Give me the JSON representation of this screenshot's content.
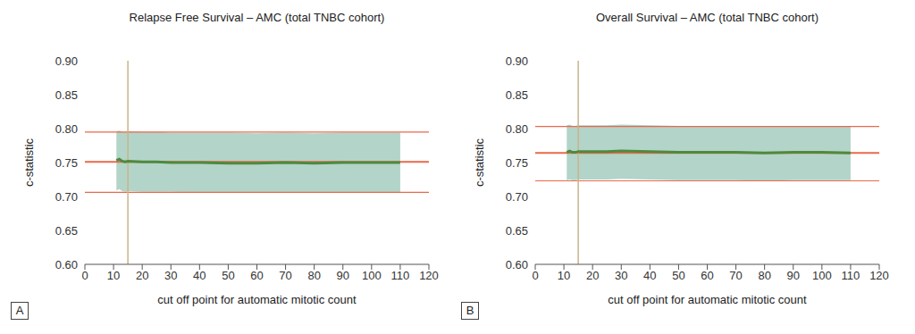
{
  "chart_data": [
    {
      "type": "line",
      "title": "Relapse Free Survival – AMC (total TNBC cohort)",
      "x_label": "cut off point for automatic mitotic count",
      "y_label": "c-statistic",
      "panel_label": "A",
      "xlim": [
        0,
        120
      ],
      "xticks": [
        0,
        10,
        20,
        30,
        40,
        50,
        60,
        70,
        80,
        90,
        100,
        110,
        120
      ],
      "ylim": [
        0.6,
        0.9
      ],
      "yticks": [
        {
          "value": 0.6,
          "label": "0.60"
        },
        0.65,
        {
          "value": 0.7,
          "label": "0.70"
        },
        0.75,
        {
          "value": 0.8,
          "label": "0.80"
        },
        0.85,
        {
          "value": 0.9,
          "label": "0.90"
        }
      ],
      "grid": false,
      "x": [
        11,
        12,
        13,
        14,
        15,
        20,
        25,
        30,
        40,
        50,
        60,
        70,
        80,
        90,
        100,
        110
      ],
      "values": [
        0.753,
        0.755,
        0.752,
        0.751,
        0.752,
        0.751,
        0.751,
        0.75,
        0.75,
        0.749,
        0.749,
        0.75,
        0.749,
        0.75,
        0.75,
        0.75
      ],
      "color": "#4e8a3e",
      "band": {
        "lower": [
          0.709,
          0.711,
          0.708,
          0.707,
          0.708,
          0.707,
          0.707,
          0.707,
          0.706,
          0.706,
          0.706,
          0.706,
          0.706,
          0.706,
          0.706,
          0.706
        ],
        "upper": [
          0.796,
          0.797,
          0.795,
          0.795,
          0.796,
          0.795,
          0.795,
          0.794,
          0.794,
          0.794,
          0.793,
          0.794,
          0.793,
          0.794,
          0.794,
          0.794
        ],
        "color": "#b3d4c8"
      },
      "hlines": {
        "values": [
          0.795,
          0.751,
          0.706
        ],
        "color": "#e8694a"
      },
      "vlines": {
        "values": [
          15
        ],
        "color": "#c9b489"
      }
    },
    {
      "type": "line",
      "title": "Overall Survival – AMC (total TNBC cohort)",
      "x_label": "cut off point for automatic mitotic count",
      "y_label": "c-statistic",
      "panel_label": "B",
      "xlim": [
        0,
        120
      ],
      "xticks": [
        0,
        10,
        20,
        30,
        40,
        50,
        60,
        70,
        80,
        90,
        100,
        110,
        120
      ],
      "ylim": [
        0.6,
        0.9
      ],
      "yticks": [
        {
          "value": 0.6,
          "label": "0.60"
        },
        0.65,
        {
          "value": 0.7,
          "label": "0.70"
        },
        0.75,
        {
          "value": 0.8,
          "label": "0.80"
        },
        0.85,
        {
          "value": 0.9,
          "label": "0.90"
        }
      ],
      "grid": false,
      "x": [
        11,
        12,
        13,
        14,
        15,
        20,
        25,
        30,
        40,
        50,
        60,
        70,
        80,
        90,
        100,
        110
      ],
      "values": [
        0.765,
        0.767,
        0.765,
        0.765,
        0.766,
        0.766,
        0.766,
        0.767,
        0.766,
        0.765,
        0.765,
        0.765,
        0.764,
        0.765,
        0.765,
        0.764
      ],
      "color": "#4e8a3e",
      "band": {
        "lower": [
          0.724,
          0.725,
          0.724,
          0.724,
          0.725,
          0.725,
          0.725,
          0.726,
          0.725,
          0.724,
          0.724,
          0.724,
          0.723,
          0.724,
          0.724,
          0.724
        ],
        "upper": [
          0.805,
          0.806,
          0.804,
          0.804,
          0.805,
          0.805,
          0.805,
          0.806,
          0.805,
          0.804,
          0.804,
          0.804,
          0.803,
          0.804,
          0.804,
          0.804
        ],
        "color": "#b3d4c8"
      },
      "hlines": {
        "values": [
          0.803,
          0.764,
          0.723
        ],
        "color": "#e8694a"
      },
      "vlines": {
        "values": [
          15
        ],
        "color": "#c9b489"
      }
    }
  ]
}
